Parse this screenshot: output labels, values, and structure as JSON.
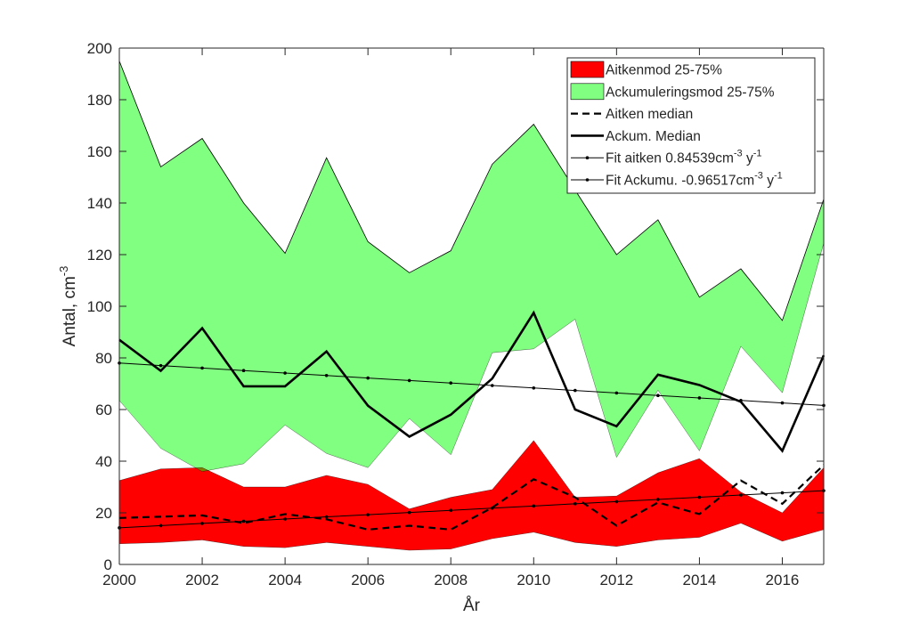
{
  "chart_data": {
    "type": "area",
    "xlabel": "År",
    "ylabel": "Antal, cm",
    "ylabel_sup": "-3",
    "xlim": [
      2000,
      2017
    ],
    "ylim": [
      0,
      200
    ],
    "x_ticks": [
      2000,
      2002,
      2004,
      2006,
      2008,
      2010,
      2012,
      2014,
      2016
    ],
    "y_ticks": [
      0,
      20,
      40,
      60,
      80,
      100,
      120,
      140,
      160,
      180,
      200
    ],
    "x": [
      2000,
      2001,
      2002,
      2003,
      2004,
      2005,
      2006,
      2007,
      2008,
      2009,
      2010,
      2011,
      2012,
      2013,
      2014,
      2015,
      2016,
      2017
    ],
    "colors": {
      "aitken_band": "#ff0000",
      "accum_band": "#80ff80",
      "overlap": "#7f7f00",
      "line": "#000000"
    },
    "series": [
      {
        "name": "Aitkenmod 25-75%",
        "kind": "band",
        "lower": [
          8,
          8.5,
          9.5,
          7,
          6.5,
          8.5,
          7,
          5.5,
          6,
          10,
          12.5,
          8.5,
          7,
          9.5,
          10.5,
          16,
          9,
          13.5
        ],
        "upper": [
          32.5,
          37,
          37.5,
          30,
          30,
          34.5,
          31,
          21.5,
          26,
          29,
          48,
          26,
          26.5,
          35.5,
          41,
          28,
          20,
          37.5
        ]
      },
      {
        "name": "Ackumuleringsmod 25-75%",
        "kind": "band",
        "lower": [
          63.5,
          45,
          36,
          39,
          54,
          43,
          37.5,
          56.5,
          42.5,
          82,
          83.5,
          95,
          41.5,
          67.5,
          44,
          84.5,
          66.5,
          124.5
        ],
        "upper": [
          195,
          154,
          165,
          140,
          120.5,
          157.5,
          125,
          113,
          121.5,
          155,
          170.5,
          145,
          120,
          133.5,
          103.5,
          114.5,
          94.5,
          141.5
        ]
      },
      {
        "name": "Aitken median",
        "kind": "dashed",
        "values": [
          18,
          18.5,
          19,
          16,
          19.5,
          17.5,
          13.5,
          15,
          13.5,
          22,
          33,
          26,
          15,
          24,
          19.5,
          32.5,
          23.5,
          38.5
        ]
      },
      {
        "name": "Ackum. Median",
        "kind": "solid",
        "values": [
          87,
          75,
          91.5,
          69,
          69,
          82.5,
          61.5,
          49.5,
          58,
          72,
          97.5,
          60,
          53.5,
          73.5,
          69.5,
          63,
          44,
          81
        ]
      },
      {
        "name": "Fit aitken",
        "kind": "fit",
        "values": [
          14.2,
          15.05,
          15.89,
          16.74,
          17.58,
          18.43,
          19.27,
          20.12,
          20.96,
          21.81,
          22.65,
          23.5,
          24.34,
          25.19,
          26.03,
          26.88,
          27.72,
          28.57
        ]
      },
      {
        "name": "Fit Ackumu.",
        "kind": "fit",
        "values": [
          78,
          77.03,
          76.07,
          75.1,
          74.14,
          73.17,
          72.21,
          71.24,
          70.28,
          69.31,
          68.35,
          67.38,
          66.42,
          65.45,
          64.49,
          63.52,
          62.56,
          61.59
        ]
      }
    ],
    "legend": {
      "placement": "top-right",
      "entries": [
        {
          "label": "Aitkenmod 25-75%"
        },
        {
          "label": "Ackumuleringsmod 25-75%"
        },
        {
          "label": "Aitken median"
        },
        {
          "label": "Ackum. Median"
        },
        {
          "label": "Fit aitken 0.84539cm",
          "sup1": "-3",
          "mid": " y",
          "sup2": "-1"
        },
        {
          "label": "Fit Ackumu. -0.96517cm",
          "sup1": "-3",
          "mid": " y",
          "sup2": "-1"
        }
      ]
    }
  }
}
